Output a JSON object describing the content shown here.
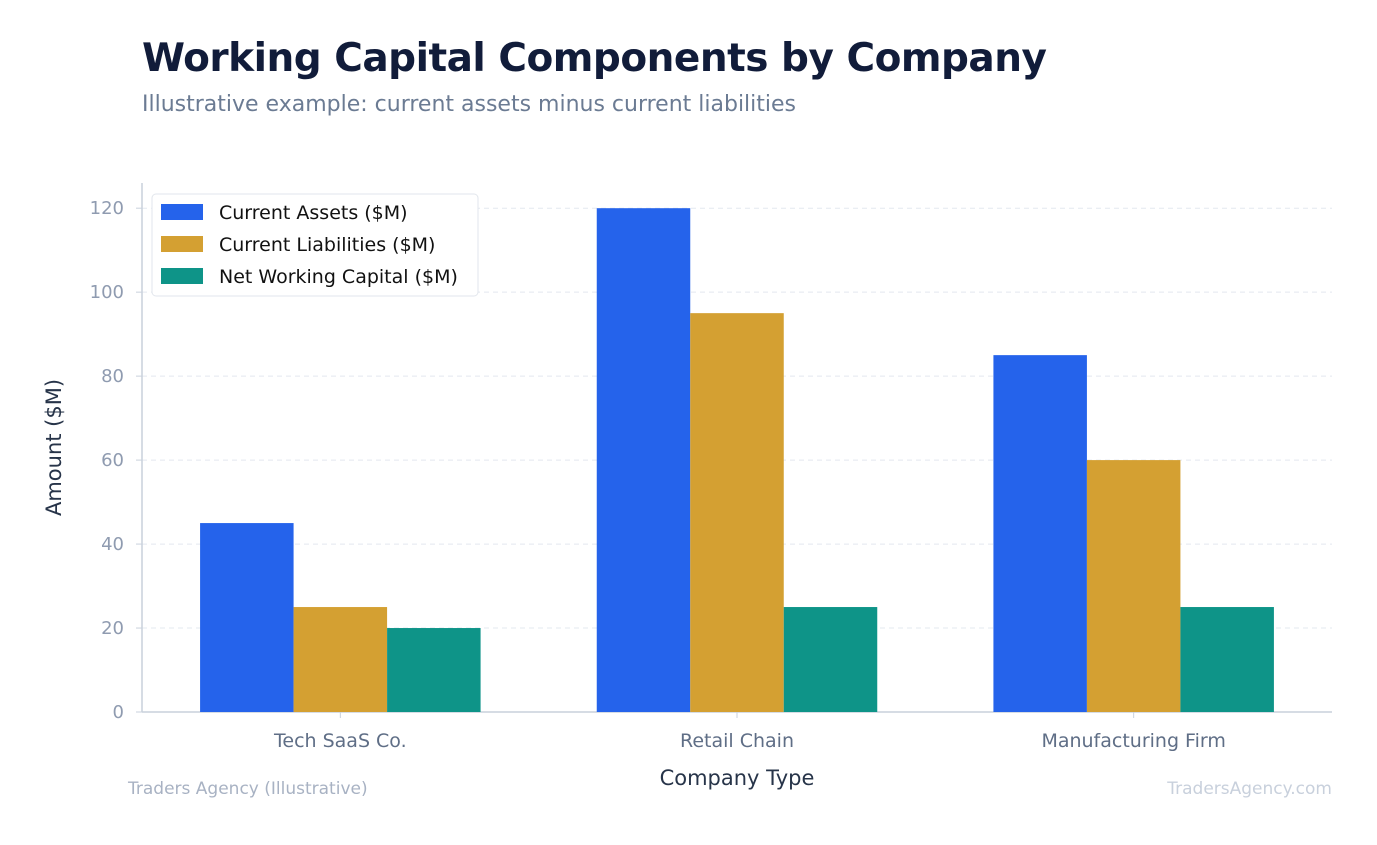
{
  "title": "Working Capital Components by Company",
  "subtitle": "Illustrative example: current assets minus current liabilities",
  "footer": {
    "left": "Traders Agency (Illustrative)",
    "right": "TradersAgency.com"
  },
  "chart_data": {
    "type": "bar",
    "categories": [
      "Tech SaaS Co.",
      "Retail Chain",
      "Manufacturing Firm"
    ],
    "series": [
      {
        "name": "Current Assets ($M)",
        "values": [
          45,
          120,
          85
        ],
        "color": "#2563eb"
      },
      {
        "name": "Current Liabilities ($M)",
        "values": [
          25,
          95,
          60
        ],
        "color": "#d4a032"
      },
      {
        "name": "Net Working Capital ($M)",
        "values": [
          20,
          25,
          25
        ],
        "color": "#0e9488"
      }
    ],
    "xlabel": "Company Type",
    "ylabel": "Amount ($M)",
    "ylim": [
      0,
      126
    ],
    "yticks": [
      0,
      20,
      40,
      60,
      80,
      100,
      120
    ],
    "grid": true,
    "legend_position": "top-left"
  }
}
